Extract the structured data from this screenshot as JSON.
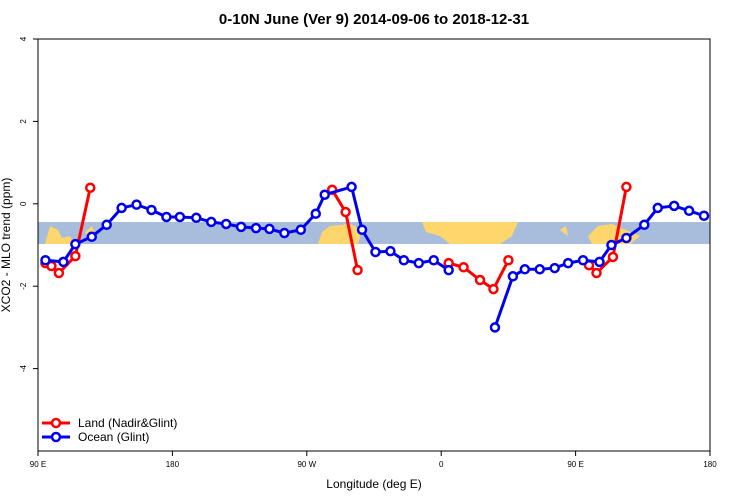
{
  "chart_data": {
    "type": "line",
    "title": "0-10N June (Ver 9)   2014-09-06 to 2018-12-31",
    "x_label": "Longitude (deg E)",
    "y_label": "XCO2 - MLO trend (ppm)",
    "xlim": [
      90,
      540
    ],
    "xticks": [
      {
        "value": 90,
        "label": "90 E"
      },
      180,
      {
        "value": 270,
        "label": "90 W"
      },
      {
        "value": 360,
        "label": "0"
      },
      {
        "value": 450,
        "label": "90 E"
      },
      {
        "value": 540,
        "label": "180"
      }
    ],
    "ylim": [
      -6,
      4
    ],
    "yticks": [
      -4,
      -2,
      0,
      2,
      4
    ],
    "legend": "bottom-left",
    "series": [
      {
        "name": "Land (Nadir&Glint)",
        "color": "#ff0000",
        "x": [
          95,
          99,
          104,
          115,
          125,
          null,
          287,
          296,
          304,
          null,
          365,
          375,
          386,
          395,
          405,
          null,
          459,
          464,
          475,
          484
        ],
        "values": [
          -1.44,
          -1.51,
          -1.68,
          -1.27,
          0.39,
          null,
          0.34,
          -0.2,
          -1.61,
          null,
          -1.44,
          -1.54,
          -1.85,
          -2.07,
          -1.37,
          null,
          -1.49,
          -1.68,
          -1.29,
          0.41
        ]
      },
      {
        "name": "Ocean (Glint)",
        "color": "#0000ee",
        "x": [
          95,
          107,
          115,
          126,
          136,
          146,
          156,
          166,
          176,
          185,
          196,
          206,
          216,
          226,
          236,
          245,
          255,
          266,
          276,
          282,
          300,
          307,
          316,
          326,
          335,
          345,
          355,
          365,
          null,
          396,
          408,
          416,
          426,
          436,
          445,
          455,
          466,
          474,
          484,
          496,
          505,
          516,
          526,
          536
        ],
        "values": [
          -1.37,
          -1.41,
          -0.98,
          -0.8,
          -0.51,
          -0.1,
          -0.02,
          -0.15,
          -0.32,
          -0.32,
          -0.34,
          -0.44,
          -0.49,
          -0.56,
          -0.59,
          -0.61,
          -0.71,
          -0.63,
          -0.24,
          0.22,
          0.41,
          -0.63,
          -1.17,
          -1.15,
          -1.37,
          -1.44,
          -1.37,
          -1.61,
          null,
          -3.0,
          -1.76,
          -1.59,
          -1.59,
          -1.56,
          -1.44,
          -1.37,
          -1.41,
          -1.0,
          -0.83,
          -0.51,
          -0.1,
          -0.05,
          -0.17,
          -0.29
        ]
      }
    ]
  }
}
